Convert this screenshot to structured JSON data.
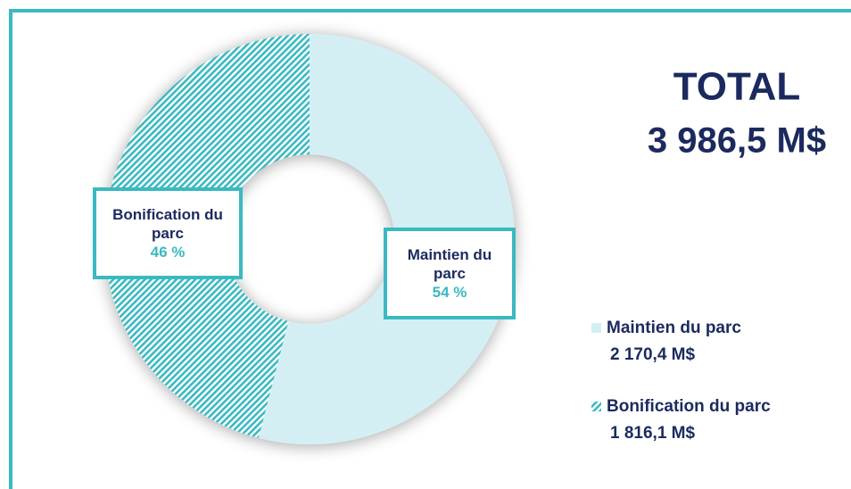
{
  "chart_data": {
    "type": "donut",
    "categories": [
      "Maintien du parc",
      "Bonification du parc"
    ],
    "values": [
      54,
      46
    ],
    "value_labels": [
      "54 %",
      "46 %"
    ],
    "amount_labels": [
      "2 170,4 M$",
      "1 816,1 M$"
    ],
    "colors": [
      "#d4eff4",
      "#3bb9c1"
    ],
    "fill_styles": [
      "solid",
      "hatch"
    ],
    "total_title": "TOTAL",
    "total_value": "3 986,5 M$"
  }
}
